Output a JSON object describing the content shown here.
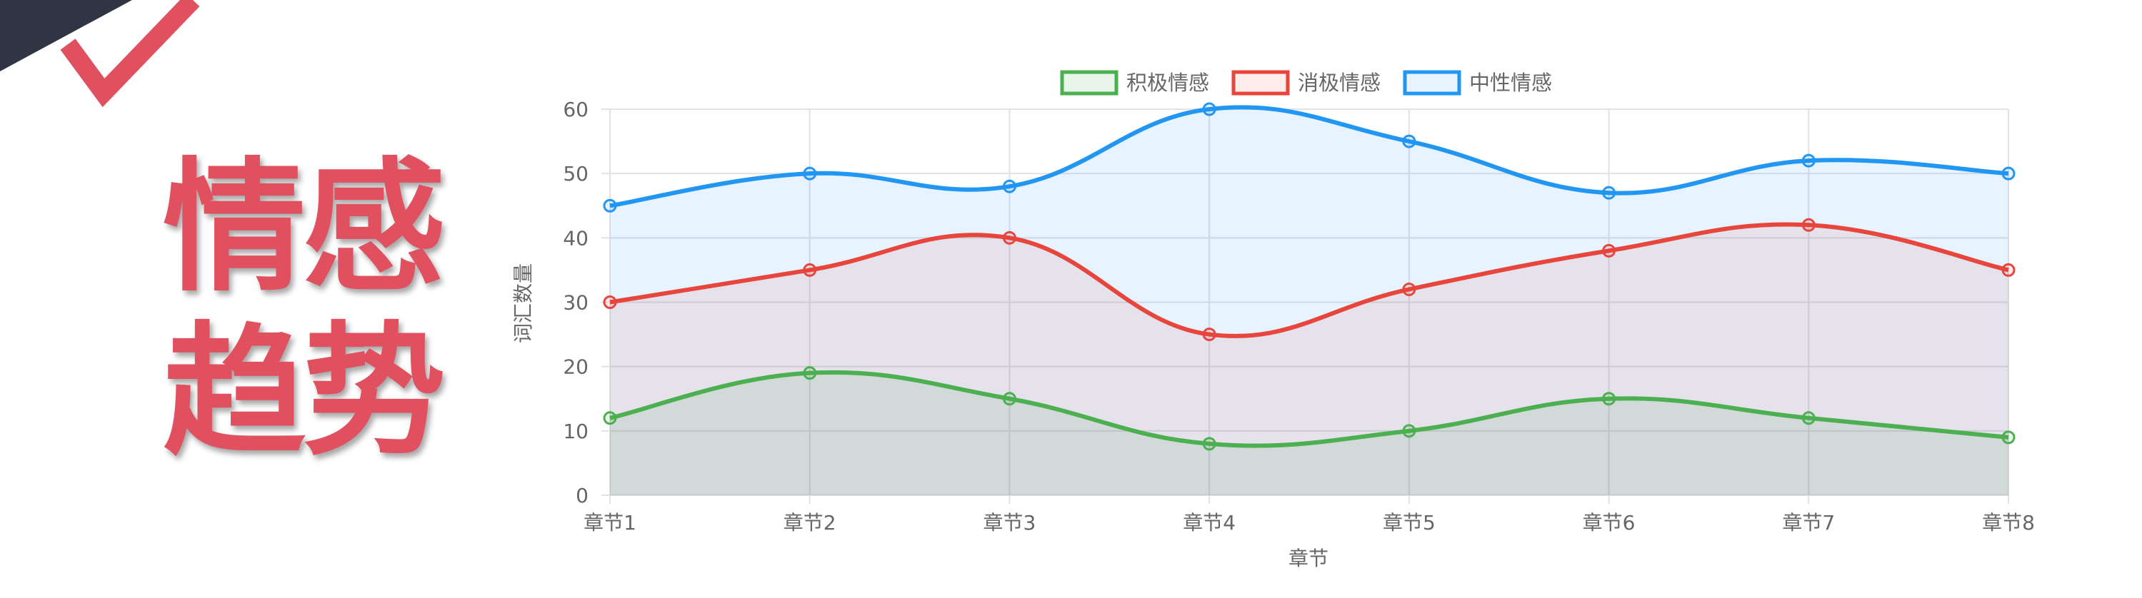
{
  "page": {
    "title_line1": "情感",
    "title_line2": "趋势"
  },
  "colors": {
    "title": "#e0505f",
    "corner_dark": "#2f3542",
    "corner_accent": "#e0505f"
  },
  "chart_data": {
    "type": "line",
    "smooth": true,
    "stacked_fill": true,
    "categories": [
      "章节1",
      "章节2",
      "章节3",
      "章节4",
      "章节5",
      "章节6",
      "章节7",
      "章节8"
    ],
    "series": [
      {
        "name": "积极情感",
        "color": "#4caf50",
        "fill": "rgba(76,175,80,0.13)",
        "values": [
          12,
          19,
          15,
          8,
          10,
          15,
          12,
          9
        ]
      },
      {
        "name": "消极情感",
        "color": "#e8453c",
        "fill": "rgba(232,69,60,0.10)",
        "values": [
          30,
          35,
          40,
          25,
          32,
          38,
          42,
          35
        ]
      },
      {
        "name": "中性情感",
        "color": "#2196f3",
        "fill": "rgba(33,150,243,0.11)",
        "values": [
          45,
          50,
          48,
          60,
          55,
          47,
          52,
          50
        ]
      }
    ],
    "xlabel": "章节",
    "ylabel": "词汇数量",
    "ylim": [
      0,
      60
    ],
    "yticks": [
      0,
      10,
      20,
      30,
      40,
      50,
      60
    ],
    "grid": true,
    "legend_position": "top-center"
  }
}
